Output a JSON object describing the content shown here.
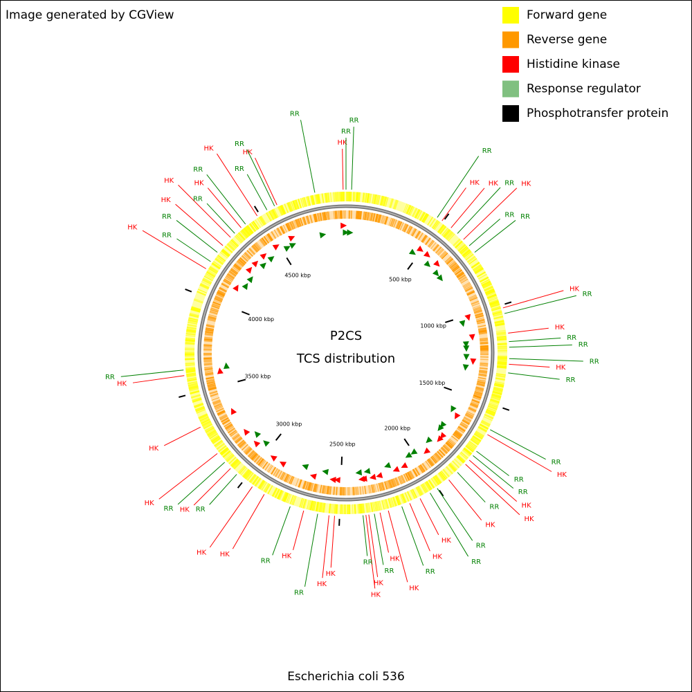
{
  "header": {
    "text": "Image generated by CGView"
  },
  "legend": [
    {
      "label": "Forward gene",
      "color": "#ffff00"
    },
    {
      "label": "Reverse gene",
      "color": "#ff9900"
    },
    {
      "label": "Histidine kinase",
      "color": "#ff0000"
    },
    {
      "label": "Response regulator",
      "color": "#80c080"
    },
    {
      "label": "Phosphotransfer protein",
      "color": "#000000"
    }
  ],
  "map": {
    "title": "P2CS",
    "subtitle": "TCS distribution",
    "range": [
      0,
      4938
    ],
    "ticks": [
      {
        "value": 500,
        "label": "500 kbp"
      },
      {
        "value": 1000,
        "label": "1000 kbp"
      },
      {
        "value": 1500,
        "label": "1500 kbp"
      },
      {
        "value": 2000,
        "label": "2000 kbp"
      },
      {
        "value": 2500,
        "label": "2500 kbp"
      },
      {
        "value": 3000,
        "label": "3000 kbp"
      },
      {
        "value": 3500,
        "label": "3500 kbp"
      },
      {
        "value": 4000,
        "label": "4000 kbp"
      },
      {
        "value": 4500,
        "label": "4500 kbp"
      }
    ],
    "features": [
      {
        "label": "HK",
        "position": 4924,
        "color": "#ff0000"
      },
      {
        "label": "RR",
        "position": 4938,
        "color": "#008000"
      },
      {
        "label": "RR",
        "position": 27,
        "color": "#008000"
      },
      {
        "label": "RR",
        "position": 466,
        "color": "#008000"
      },
      {
        "label": "HK",
        "position": 494,
        "color": "#ff0000"
      },
      {
        "label": "HK",
        "position": 549,
        "color": "#ff0000"
      },
      {
        "label": "RR",
        "position": 590,
        "color": "#008000"
      },
      {
        "label": "HK",
        "position": 631,
        "color": "#ff0000"
      },
      {
        "label": "RR",
        "position": 672,
        "color": "#008000"
      },
      {
        "label": "RR",
        "position": 713,
        "color": "#008000"
      },
      {
        "label": "HK",
        "position": 1015,
        "color": "#ff0000"
      },
      {
        "label": "RR",
        "position": 1043,
        "color": "#008000"
      },
      {
        "label": "HK",
        "position": 1139,
        "color": "#ff0000"
      },
      {
        "label": "RR",
        "position": 1180,
        "color": "#008000"
      },
      {
        "label": "RR",
        "position": 1207,
        "color": "#008000"
      },
      {
        "label": "RR",
        "position": 1262,
        "color": "#008000"
      },
      {
        "label": "HK",
        "position": 1289,
        "color": "#ff0000"
      },
      {
        "label": "RR",
        "position": 1331,
        "color": "#008000"
      },
      {
        "label": "RR",
        "position": 1619,
        "color": "#008000"
      },
      {
        "label": "HK",
        "position": 1646,
        "color": "#ff0000"
      },
      {
        "label": "RR",
        "position": 1742,
        "color": "#008000"
      },
      {
        "label": "RR",
        "position": 1769,
        "color": "#008000"
      },
      {
        "label": "HK",
        "position": 1797,
        "color": "#ff0000"
      },
      {
        "label": "HK",
        "position": 1824,
        "color": "#ff0000"
      },
      {
        "label": "RR",
        "position": 1879,
        "color": "#008000"
      },
      {
        "label": "HK",
        "position": 1934,
        "color": "#ff0000"
      },
      {
        "label": "RR",
        "position": 2003,
        "color": "#008000"
      },
      {
        "label": "RR",
        "position": 2044,
        "color": "#008000"
      },
      {
        "label": "HK",
        "position": 2099,
        "color": "#ff0000"
      },
      {
        "label": "HK",
        "position": 2154,
        "color": "#ff0000"
      },
      {
        "label": "RR",
        "position": 2195,
        "color": "#008000"
      },
      {
        "label": "HK",
        "position": 2263,
        "color": "#ff0000"
      },
      {
        "label": "HK",
        "position": 2304,
        "color": "#ff0000"
      },
      {
        "label": "RR",
        "position": 2332,
        "color": "#008000"
      },
      {
        "label": "HK",
        "position": 2359,
        "color": "#ff0000"
      },
      {
        "label": "HK",
        "position": 2373,
        "color": "#ff0000"
      },
      {
        "label": "RR",
        "position": 2387,
        "color": "#008000"
      },
      {
        "label": "HK",
        "position": 2524,
        "color": "#ff0000"
      },
      {
        "label": "HK",
        "position": 2551,
        "color": "#ff0000"
      },
      {
        "label": "RR",
        "position": 2606,
        "color": "#008000"
      },
      {
        "label": "HK",
        "position": 2675,
        "color": "#ff0000"
      },
      {
        "label": "RR",
        "position": 2743,
        "color": "#008000"
      },
      {
        "label": "HK",
        "position": 2881,
        "color": "#ff0000"
      },
      {
        "label": "HK",
        "position": 2949,
        "color": "#ff0000"
      },
      {
        "label": "RR",
        "position": 3045,
        "color": "#008000"
      },
      {
        "label": "HK",
        "position": 3086,
        "color": "#ff0000"
      },
      {
        "label": "RR",
        "position": 3127,
        "color": "#008000"
      },
      {
        "label": "HK",
        "position": 3182,
        "color": "#ff0000"
      },
      {
        "label": "HK",
        "position": 3333,
        "color": "#ff0000"
      },
      {
        "label": "HK",
        "position": 3594,
        "color": "#ff0000"
      },
      {
        "label": "RR",
        "position": 3621,
        "color": "#008000"
      },
      {
        "label": "HK",
        "position": 4129,
        "color": "#ff0000"
      },
      {
        "label": "RR",
        "position": 4170,
        "color": "#008000"
      },
      {
        "label": "RR",
        "position": 4225,
        "color": "#008000"
      },
      {
        "label": "HK",
        "position": 4267,
        "color": "#ff0000"
      },
      {
        "label": "HK",
        "position": 4321,
        "color": "#ff0000"
      },
      {
        "label": "RR",
        "position": 4349,
        "color": "#008000"
      },
      {
        "label": "HK",
        "position": 4390,
        "color": "#ff0000"
      },
      {
        "label": "RR",
        "position": 4417,
        "color": "#008000"
      },
      {
        "label": "HK",
        "position": 4486,
        "color": "#ff0000"
      },
      {
        "label": "RR",
        "position": 4541,
        "color": "#008000"
      },
      {
        "label": "HK",
        "position": 4595,
        "color": "#ff0000"
      },
      {
        "label": "RR",
        "position": 4582,
        "color": "#008000"
      },
      {
        "label": "RR",
        "position": 4787,
        "color": "#008000"
      }
    ]
  },
  "footer": {
    "text": "Escherichia coli 536"
  }
}
